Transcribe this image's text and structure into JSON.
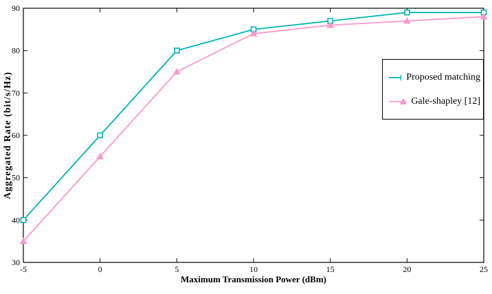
{
  "chart_data": {
    "type": "line",
    "x": [
      -5,
      0,
      5,
      10,
      15,
      20,
      25
    ],
    "series": [
      {
        "name": "Proposed matching",
        "color": "#00b2b2",
        "marker": "square",
        "values": [
          40,
          60,
          80,
          85,
          87,
          89,
          89
        ]
      },
      {
        "name": "Gale-shapley [12]",
        "color": "#f898cb",
        "marker": "triangle",
        "values": [
          35,
          55,
          75,
          84,
          86,
          87,
          88
        ]
      }
    ],
    "title": "",
    "xlabel": "Maximum Transmission Power (dBm)",
    "ylabel": "Aggregated Rate (bit/s/Hz)",
    "xlim": [
      -5,
      25
    ],
    "ylim": [
      30,
      90
    ],
    "xticks": [
      -5,
      0,
      5,
      10,
      15,
      20,
      25
    ],
    "yticks": [
      30,
      40,
      50,
      60,
      70,
      80,
      90
    ],
    "grid": false,
    "legend_position": "right",
    "axis_color": "#000000",
    "background_color": "#ffffff"
  }
}
